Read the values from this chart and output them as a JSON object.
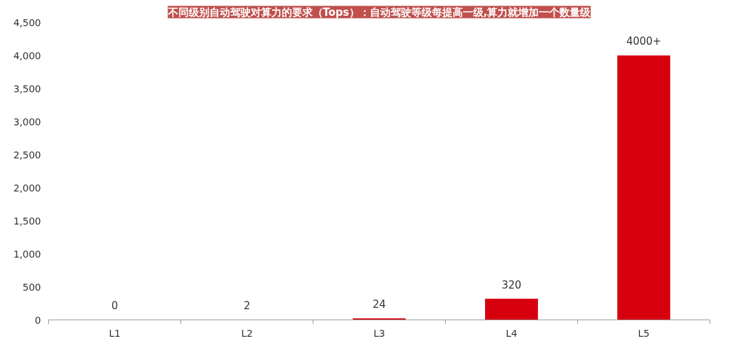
{
  "chart_data": {
    "type": "bar",
    "title": "不同级别自动驾驶对算力的要求（Tops）：自动驾驶等级每提高一级,算力就增加一个数量级",
    "categories": [
      "L1",
      "L2",
      "L3",
      "L4",
      "L5"
    ],
    "values": [
      0,
      2,
      24,
      320,
      4000
    ],
    "value_labels": [
      "0",
      "2",
      "24",
      "320",
      "4000+"
    ],
    "color": "#d7000f",
    "ylim": [
      0,
      4500
    ],
    "yticks": [
      0,
      {
        "value": 500,
        "label": "500"
      },
      {
        "value": 1000,
        "label": "1,000"
      },
      {
        "value": 1500,
        "label": "1,500"
      },
      {
        "value": 2000,
        "label": "2,000"
      },
      {
        "value": 2500,
        "label": "2,500"
      },
      {
        "value": 3000,
        "label": "3,000"
      },
      {
        "value": 3500,
        "label": "3,500"
      },
      {
        "value": 4000,
        "label": "4,000"
      },
      {
        "value": 4500,
        "label": "4,500"
      }
    ],
    "grid": false
  }
}
